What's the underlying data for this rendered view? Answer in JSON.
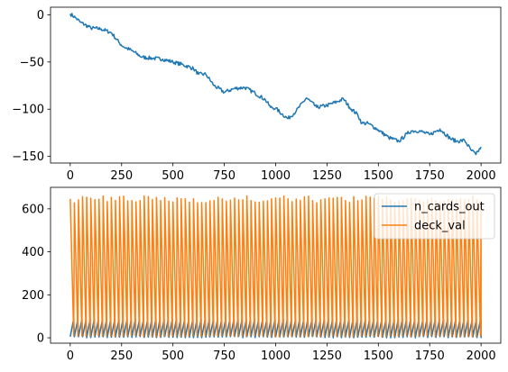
{
  "chart_data": [
    {
      "type": "line",
      "title": "",
      "xlabel": "",
      "ylabel": "",
      "xlim": [
        -96,
        2096
      ],
      "ylim": [
        -157,
        8
      ],
      "xticks": [
        0,
        250,
        500,
        750,
        1000,
        1250,
        1500,
        1750,
        2000
      ],
      "yticks": [
        0,
        -50,
        -100,
        -150
      ],
      "xtick_labels": [
        "0",
        "250",
        "500",
        "750",
        "1000",
        "1250",
        "1500",
        "1750",
        "2000"
      ],
      "ytick_labels": [
        "0",
        "−50",
        "−100",
        "−150"
      ],
      "grid": false,
      "legend": null,
      "series": [
        {
          "color": "#1f77b4",
          "x": [
            0,
            25,
            50,
            100,
            150,
            200,
            240,
            260,
            300,
            350,
            400,
            450,
            500,
            550,
            600,
            625,
            660,
            700,
            750,
            800,
            850,
            900,
            950,
            975,
            1000,
            1030,
            1060,
            1100,
            1150,
            1200,
            1250,
            1300,
            1330,
            1360,
            1400,
            1420,
            1450,
            1500,
            1550,
            1600,
            1640,
            1660,
            1700,
            1750,
            1800,
            1850,
            1880,
            1920,
            1950,
            1975,
            2000
          ],
          "y": [
            1,
            -3,
            -8,
            -14,
            -15,
            -19,
            -30,
            -34,
            -38,
            -45,
            -46,
            -47,
            -50,
            -53,
            -57,
            -63,
            -63,
            -75,
            -82,
            -78,
            -77,
            -83,
            -90,
            -98,
            -99,
            -105,
            -110,
            -102,
            -88,
            -98,
            -96,
            -92,
            -89,
            -98,
            -106,
            -115,
            -115,
            -122,
            -130,
            -134,
            -126,
            -123,
            -123,
            -127,
            -121,
            -131,
            -134,
            -133,
            -143,
            -148,
            -140
          ]
        }
      ]
    },
    {
      "type": "line",
      "title": "",
      "xlabel": "",
      "ylabel": "",
      "xlim": [
        -96,
        2096
      ],
      "ylim": [
        -25,
        700
      ],
      "xticks": [
        0,
        250,
        500,
        750,
        1000,
        1250,
        1500,
        1750,
        2000
      ],
      "yticks": [
        0,
        200,
        400,
        600
      ],
      "xtick_labels": [
        "0",
        "250",
        "500",
        "750",
        "1000",
        "1250",
        "1500",
        "1750",
        "2000"
      ],
      "ytick_labels": [
        "0",
        "200",
        "400",
        "600"
      ],
      "grid": false,
      "legend": "top-right",
      "series": [
        {
          "name": "n_cards_out",
          "color": "#1f77b4",
          "pattern": "sawtooth",
          "period": 20,
          "low": 3,
          "high": 90
        },
        {
          "name": "deck_val",
          "color": "#ff7f0e",
          "pattern": "sawtooth-descending",
          "period": 20,
          "low": 8,
          "high": 660
        }
      ]
    }
  ]
}
